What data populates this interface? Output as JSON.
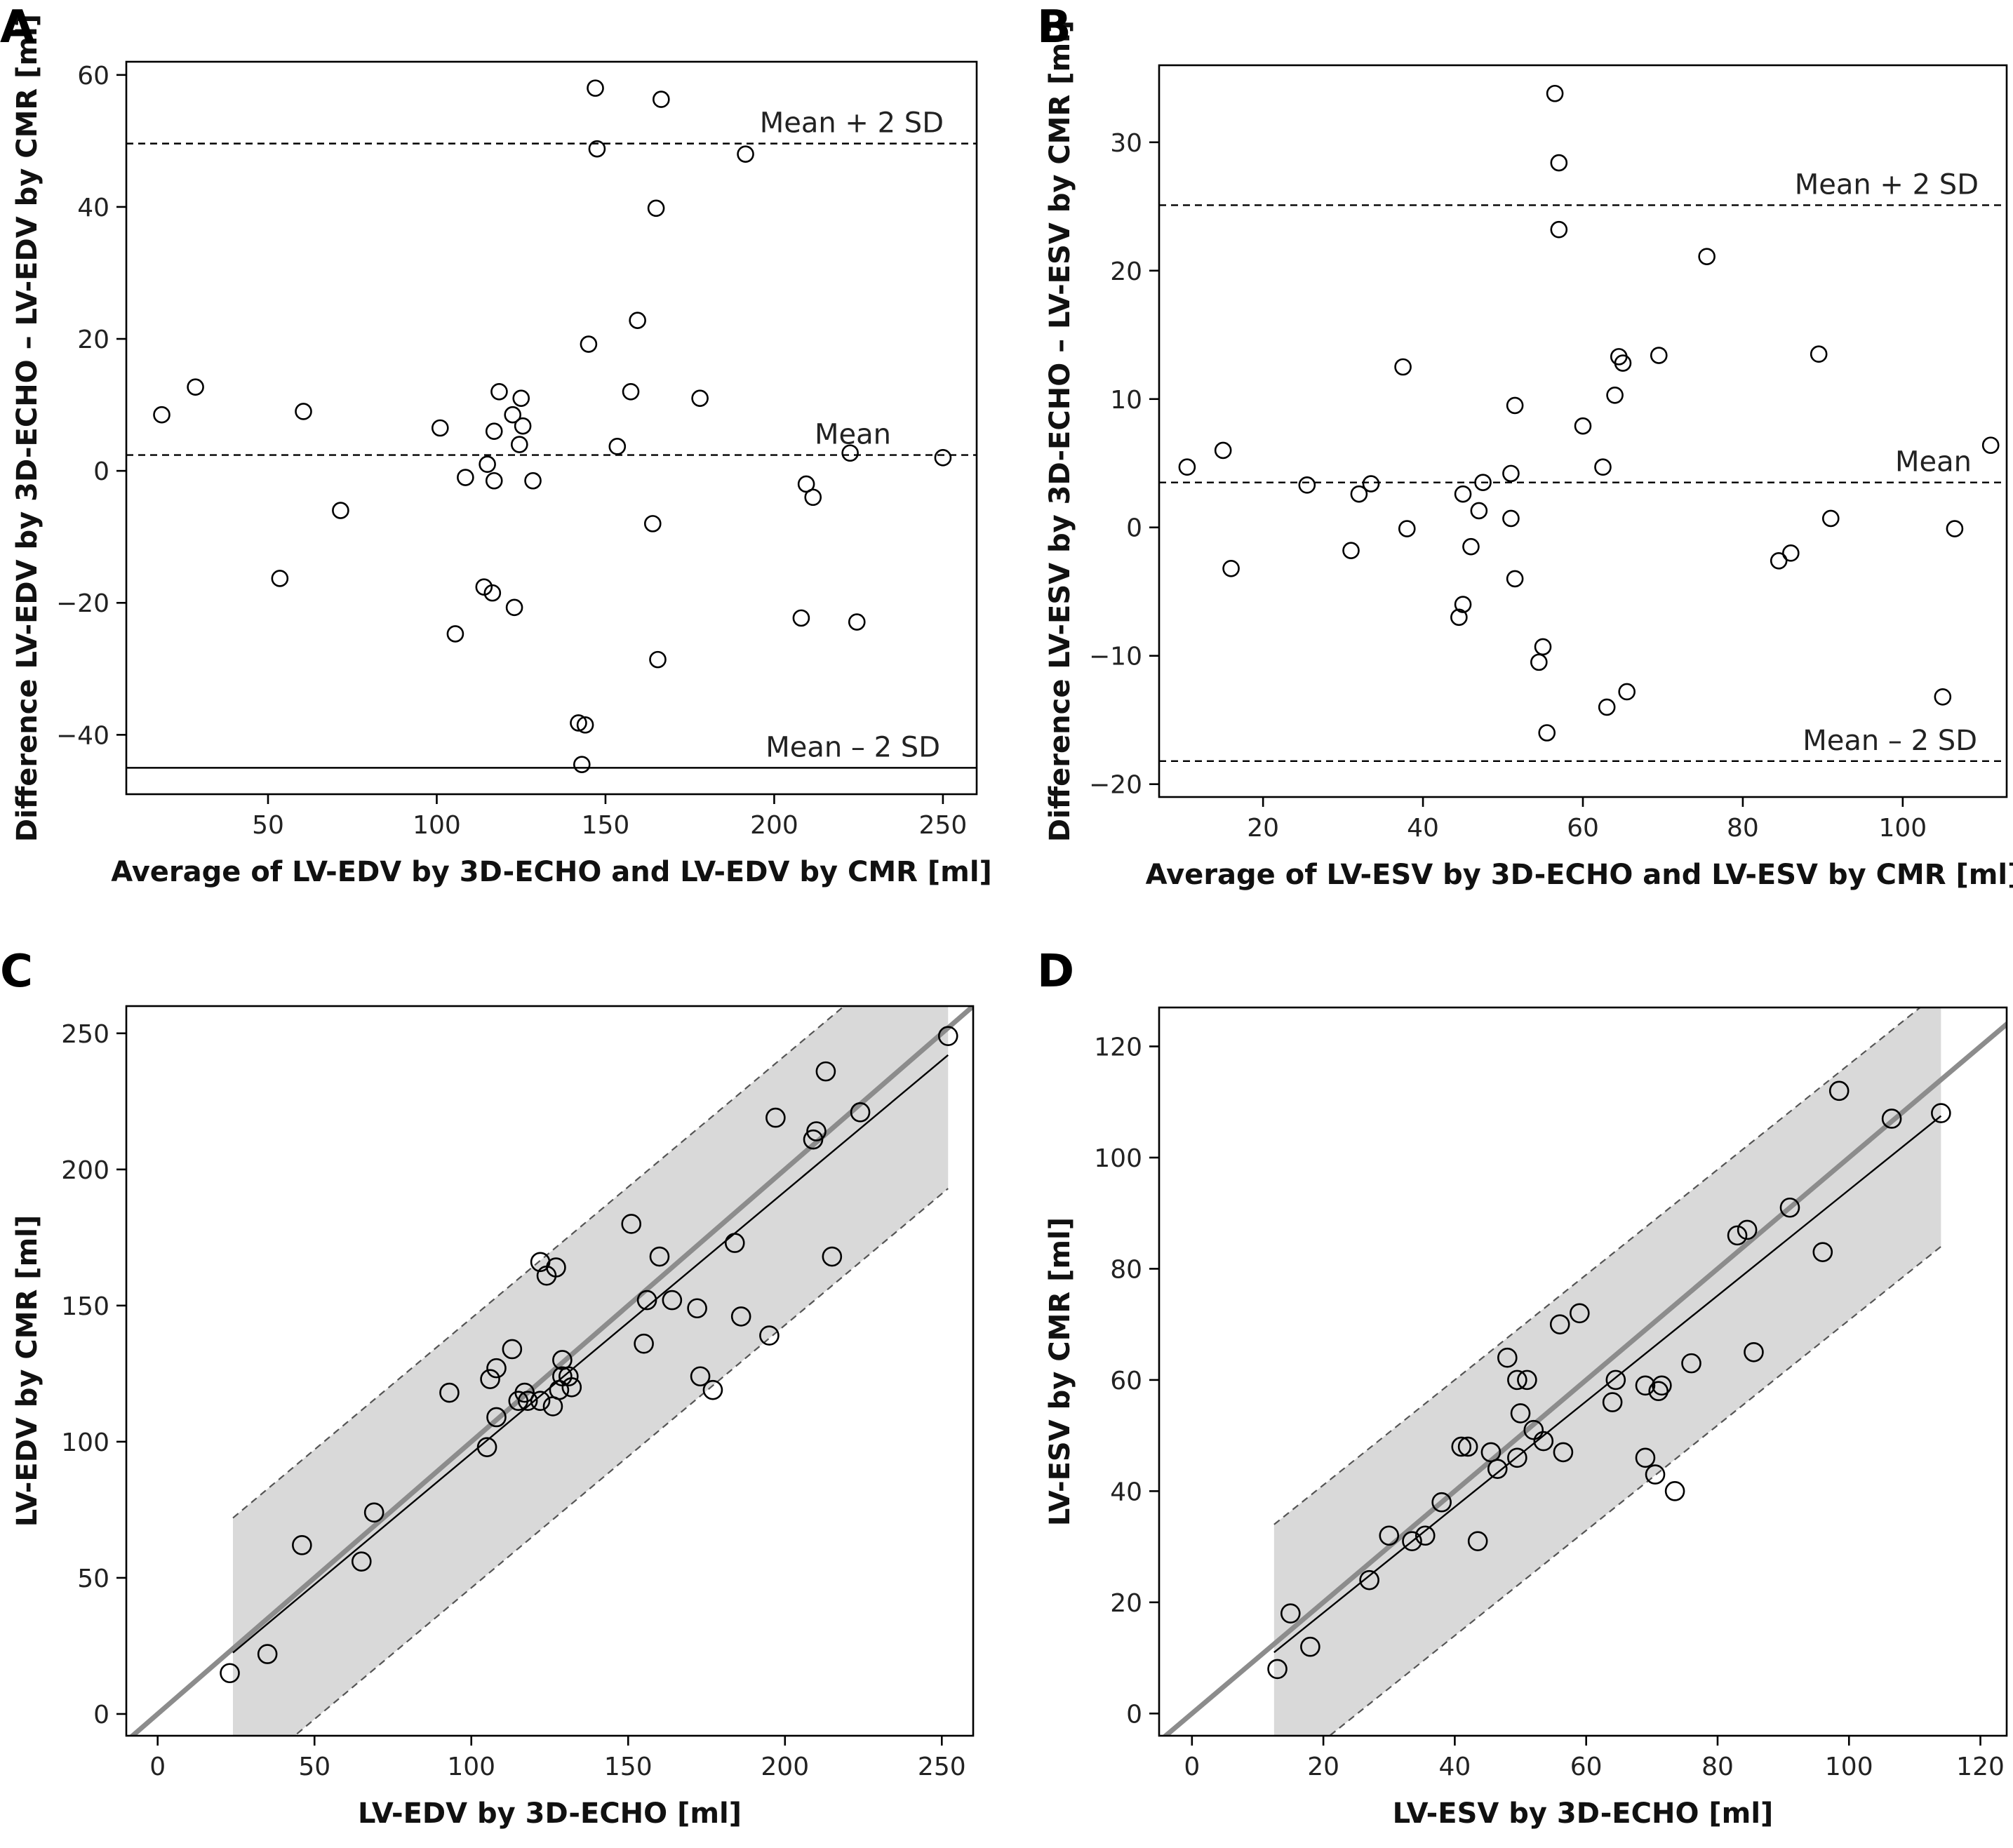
{
  "chart_data": [
    {
      "panel": "A",
      "type": "scatter",
      "xlabel": "Average of LV-EDV by 3D-ECHO and LV-EDV by CMR [ml]",
      "ylabel": "Difference LV-EDV by 3D-ECHO – LV-EDV by CMR [ml]",
      "xlim": [
        8,
        260
      ],
      "ylim": [
        -49,
        62
      ],
      "xticks": [
        50,
        100,
        150,
        200,
        250
      ],
      "yticks": [
        -40,
        -20,
        0,
        20,
        40,
        60
      ],
      "grid": false,
      "reference_lines": [
        {
          "label": "Mean + 2 SD",
          "y": 49.6,
          "style": "dashed"
        },
        {
          "label": "Mean",
          "y": 2.4,
          "style": "dashed"
        },
        {
          "label": "Mean – 2 SD",
          "y": -45,
          "style": "solid"
        }
      ],
      "points": [
        [
          18.5,
          8.5
        ],
        [
          28.5,
          12.7
        ],
        [
          53.5,
          -16.3
        ],
        [
          60.5,
          9
        ],
        [
          71.5,
          -6
        ],
        [
          101,
          6.5
        ],
        [
          105.5,
          -24.7
        ],
        [
          108.5,
          -1
        ],
        [
          114,
          -17.6
        ],
        [
          115,
          1
        ],
        [
          116.5,
          -18.5
        ],
        [
          117,
          -1.5
        ],
        [
          117,
          6
        ],
        [
          118.5,
          12
        ],
        [
          122.5,
          8.5
        ],
        [
          123,
          -20.7
        ],
        [
          124.5,
          4
        ],
        [
          125,
          11
        ],
        [
          125.5,
          6.8
        ],
        [
          128.5,
          -1.5
        ],
        [
          142,
          -38.2
        ],
        [
          143,
          -44.5
        ],
        [
          144,
          -38.5
        ],
        [
          145,
          19.2
        ],
        [
          147,
          58
        ],
        [
          147.5,
          48.8
        ],
        [
          153.5,
          3.7
        ],
        [
          157.5,
          12
        ],
        [
          159.5,
          22.8
        ],
        [
          164,
          -8
        ],
        [
          165,
          39.8
        ],
        [
          165.5,
          -28.6
        ],
        [
          166.5,
          56.3
        ],
        [
          178,
          11
        ],
        [
          191.5,
          48
        ],
        [
          208,
          -22.3
        ],
        [
          209.5,
          -2
        ],
        [
          211.5,
          -4
        ],
        [
          222.5,
          2.7
        ],
        [
          224.5,
          -22.9
        ],
        [
          250,
          2
        ]
      ]
    },
    {
      "panel": "B",
      "type": "scatter",
      "xlabel": "Average of LV-ESV by 3D-ECHO and LV-ESV by CMR [ml]",
      "ylabel": "Difference LV-ESV by 3D-ECHO – LV-ESV by CMR [ml]",
      "xlim": [
        7,
        113
      ],
      "ylim": [
        -21,
        36
      ],
      "xticks": [
        20,
        40,
        60,
        80,
        100
      ],
      "yticks": [
        -20,
        -10,
        0,
        10,
        20,
        30
      ],
      "grid": false,
      "reference_lines": [
        {
          "label": "Mean + 2 SD",
          "y": 25.1,
          "style": "dashed"
        },
        {
          "label": "Mean",
          "y": 3.5,
          "style": "dashed"
        },
        {
          "label": "Mean – 2 SD",
          "y": -18.2,
          "style": "dashed"
        }
      ],
      "points": [
        [
          10.5,
          4.7
        ],
        [
          15,
          6
        ],
        [
          16,
          -3.2
        ],
        [
          25.5,
          3.3
        ],
        [
          31,
          -1.8
        ],
        [
          32,
          2.6
        ],
        [
          33.5,
          3.4
        ],
        [
          37.5,
          12.5
        ],
        [
          38,
          -0.1
        ],
        [
          44.5,
          -7
        ],
        [
          45,
          -6
        ],
        [
          45,
          2.6
        ],
        [
          46,
          -1.5
        ],
        [
          47,
          1.3
        ],
        [
          47.5,
          3.5
        ],
        [
          51,
          4.2
        ],
        [
          51,
          0.7
        ],
        [
          51.5,
          9.5
        ],
        [
          51.5,
          -4
        ],
        [
          54.5,
          -10.5
        ],
        [
          55,
          -9.3
        ],
        [
          55.5,
          -16
        ],
        [
          56.5,
          33.8
        ],
        [
          57,
          28.4
        ],
        [
          57,
          23.2
        ],
        [
          60,
          7.9
        ],
        [
          62.5,
          4.7
        ],
        [
          63,
          -14
        ],
        [
          64,
          10.3
        ],
        [
          64.5,
          13.3
        ],
        [
          65,
          12.8
        ],
        [
          65.5,
          -12.8
        ],
        [
          69.5,
          13.4
        ],
        [
          75.5,
          21.1
        ],
        [
          84.5,
          -2.6
        ],
        [
          86,
          -2
        ],
        [
          89.5,
          13.5
        ],
        [
          91,
          0.7
        ],
        [
          105,
          -13.2
        ],
        [
          106.5,
          -0.1
        ],
        [
          111,
          6.4
        ]
      ]
    },
    {
      "panel": "C",
      "type": "scatter",
      "xlabel": "LV-EDV by 3D-ECHO [ml]",
      "ylabel": "LV-EDV by CMR [ml]",
      "xlim": [
        -10,
        260
      ],
      "ylim": [
        -8,
        260
      ],
      "xticks": [
        0,
        50,
        100,
        150,
        200,
        250
      ],
      "yticks": [
        0,
        50,
        100,
        150,
        200,
        250
      ],
      "grid": false,
      "identity_line": true,
      "regression_line": {
        "x0": 24,
        "y0": 22.5,
        "x1": 252,
        "y1": 242
      },
      "limits_band": {
        "x0": 24,
        "x1": 252,
        "upper": [
          72,
          292
        ],
        "lower": [
          -27,
          193
        ]
      },
      "points": [
        [
          23,
          15
        ],
        [
          35,
          22
        ],
        [
          46,
          62
        ],
        [
          65,
          56
        ],
        [
          69,
          74
        ],
        [
          93,
          118
        ],
        [
          105,
          98
        ],
        [
          106,
          123
        ],
        [
          108,
          109
        ],
        [
          108,
          127
        ],
        [
          113,
          134
        ],
        [
          115,
          115
        ],
        [
          117,
          118
        ],
        [
          118,
          115
        ],
        [
          122,
          115
        ],
        [
          122,
          166
        ],
        [
          124,
          161
        ],
        [
          126,
          113
        ],
        [
          127,
          164
        ],
        [
          128,
          119
        ],
        [
          129,
          130
        ],
        [
          129,
          124
        ],
        [
          131,
          124
        ],
        [
          132,
          120
        ],
        [
          151,
          180
        ],
        [
          155,
          136
        ],
        [
          156,
          152
        ],
        [
          160,
          168
        ],
        [
          164,
          152
        ],
        [
          172,
          149
        ],
        [
          173,
          124
        ],
        [
          177,
          119
        ],
        [
          184,
          173
        ],
        [
          186,
          146
        ],
        [
          195,
          139
        ],
        [
          197,
          219
        ],
        [
          209,
          211
        ],
        [
          210,
          214
        ],
        [
          213,
          236
        ],
        [
          215,
          168
        ],
        [
          224,
          221
        ],
        [
          252,
          249
        ]
      ]
    },
    {
      "panel": "D",
      "type": "scatter",
      "xlabel": "LV-ESV by 3D-ECHO [ml]",
      "ylabel": "LV-ESV by CMR [ml]",
      "xlim": [
        -5,
        124
      ],
      "ylim": [
        -4,
        127
      ],
      "xticks": [
        0,
        20,
        40,
        60,
        80,
        100,
        120
      ],
      "yticks": [
        0,
        20,
        40,
        60,
        80,
        100,
        120
      ],
      "grid": false,
      "identity_line": true,
      "regression_line": {
        "x0": 12.5,
        "y0": 11,
        "x1": 114,
        "y1": 107.5
      },
      "limits_band": {
        "x0": 12.5,
        "x1": 114,
        "upper": [
          34,
          130
        ],
        "lower": [
          -12,
          84
        ]
      },
      "points": [
        [
          13,
          8
        ],
        [
          15,
          18
        ],
        [
          18,
          12
        ],
        [
          27,
          24
        ],
        [
          30,
          32
        ],
        [
          33.5,
          31
        ],
        [
          35.5,
          32
        ],
        [
          38,
          38
        ],
        [
          41,
          48
        ],
        [
          42,
          48
        ],
        [
          43.5,
          31
        ],
        [
          45.5,
          47
        ],
        [
          46.5,
          44
        ],
        [
          48,
          64
        ],
        [
          49.5,
          60
        ],
        [
          49.5,
          46
        ],
        [
          50,
          54
        ],
        [
          51,
          60
        ],
        [
          52,
          51
        ],
        [
          53.5,
          49
        ],
        [
          56,
          70
        ],
        [
          56.5,
          47
        ],
        [
          59,
          72
        ],
        [
          64,
          56
        ],
        [
          64.5,
          60
        ],
        [
          69,
          46
        ],
        [
          69,
          59
        ],
        [
          70.5,
          43
        ],
        [
          71,
          58
        ],
        [
          71.5,
          59
        ],
        [
          73.5,
          40
        ],
        [
          76,
          63
        ],
        [
          83,
          86
        ],
        [
          84.5,
          87
        ],
        [
          85.5,
          65
        ],
        [
          91,
          91
        ],
        [
          96,
          83
        ],
        [
          98.5,
          112
        ],
        [
          106.5,
          107
        ],
        [
          114,
          108
        ]
      ]
    }
  ]
}
